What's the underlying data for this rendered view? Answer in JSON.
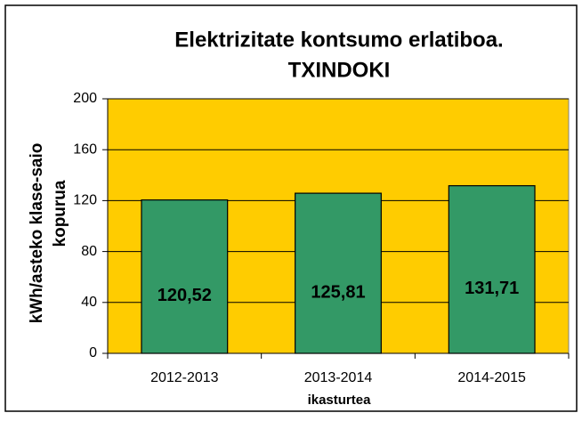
{
  "chart_data": {
    "type": "bar",
    "title": [
      "Elektrizitate kontsumo erlatiboa.",
      "TXINDOKI"
    ],
    "y_label": [
      "kWh/asteko klase-saio",
      "kopurua"
    ],
    "x_label": "ikasturtea",
    "categories": [
      "2012-2013",
      "2013-2014",
      "2014-2015"
    ],
    "values": [
      120.52,
      125.81,
      131.71
    ],
    "value_labels": [
      "120,52",
      "125,81",
      "131,71"
    ],
    "color": "#339966",
    "plot_background": "#ffcc00",
    "ylim": [
      0,
      200
    ],
    "yticks": [
      0,
      40,
      80,
      120,
      160,
      200
    ],
    "grid": true
  }
}
